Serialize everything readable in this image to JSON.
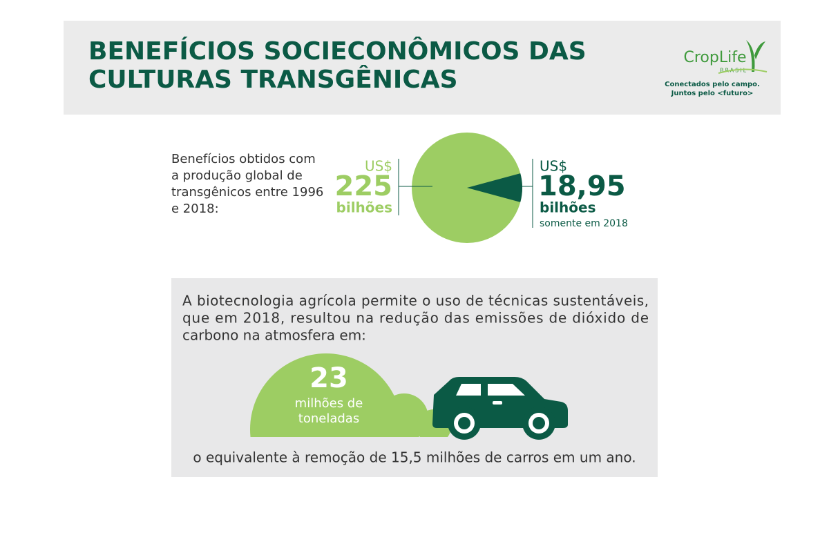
{
  "header": {
    "title": [
      "BENEFÍCIOS SOCIECONÔMICOS DAS",
      "CULTURAS TRANSGÊNICAS"
    ],
    "logo": "CropLife",
    "logo_sub": "BRASIL",
    "tagline": [
      "Conectados pelo campo.",
      "Juntos pelo <futuro>"
    ]
  },
  "intro": [
    "Benefícios obtidos com",
    "a produção global de",
    "transgênicos entre 1996",
    "e 2018:"
  ],
  "chart_data": {
    "type": "pie",
    "values": [
      225,
      18.95
    ],
    "value_labels": [
      "225",
      "18,95"
    ],
    "colors": [
      "#9dcd63",
      "#0b5a45"
    ],
    "currency": [
      "US$",
      "US$"
    ],
    "unit": [
      "bilhões",
      "bilhões"
    ],
    "note": "somente em 2018"
  },
  "emissions": {
    "text": [
      "A biotecnologia agrícola permite o uso de técnicas sustentáveis,",
      "que em 2018, resultou na redução das emissões de dióxido de",
      "carbono na atmosfera em:"
    ],
    "amount": 23,
    "unit": [
      "milhões de",
      "toneladas"
    ],
    "equivalent": "o equivalente à remoção de 15,5 milhões de carros em um ano."
  }
}
